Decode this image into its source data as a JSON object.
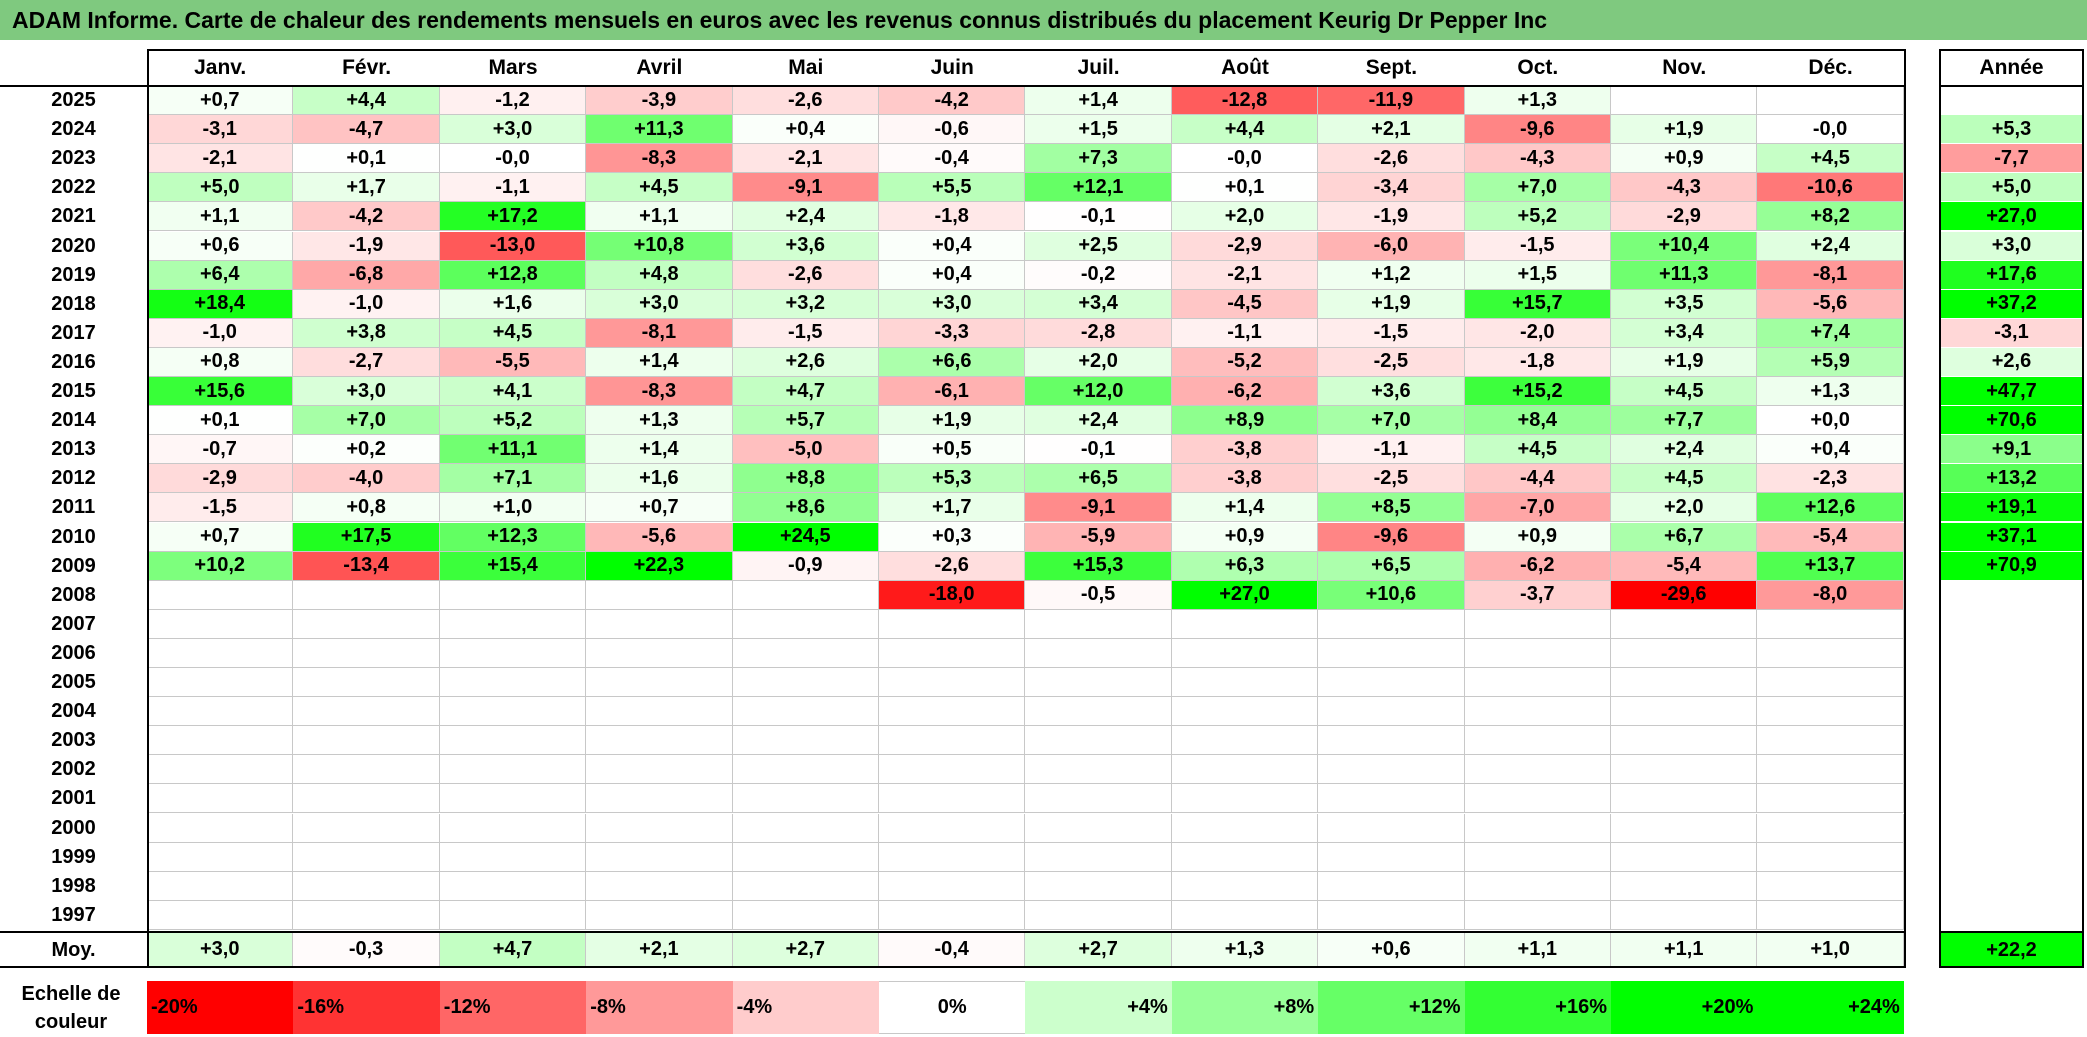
{
  "title": "ADAM Informe. Carte de chaleur des rendements mensuels en euros avec les revenus connus distribués du placement Keurig Dr Pepper Inc",
  "chart_data": {
    "type": "heatmap",
    "months": [
      "Janv.",
      "Févr.",
      "Mars",
      "Avril",
      "Mai",
      "Juin",
      "Juil.",
      "Août",
      "Sept.",
      "Oct.",
      "Nov.",
      "Déc."
    ],
    "year_header": "Année",
    "rows": [
      {
        "year": "2025",
        "values": [
          "+0,7",
          "+4,4",
          "-1,2",
          "-3,9",
          "-2,6",
          "-4,2",
          "+1,4",
          "-12,8",
          "-11,9",
          "+1,3",
          "",
          ""
        ],
        "annual": ""
      },
      {
        "year": "2024",
        "values": [
          "-3,1",
          "-4,7",
          "+3,0",
          "+11,3",
          "+0,4",
          "-0,6",
          "+1,5",
          "+4,4",
          "+2,1",
          "-9,6",
          "+1,9",
          "-0,0"
        ],
        "annual": "+5,3"
      },
      {
        "year": "2023",
        "values": [
          "-2,1",
          "+0,1",
          "-0,0",
          "-8,3",
          "-2,1",
          "-0,4",
          "+7,3",
          "-0,0",
          "-2,6",
          "-4,3",
          "+0,9",
          "+4,5"
        ],
        "annual": "-7,7"
      },
      {
        "year": "2022",
        "values": [
          "+5,0",
          "+1,7",
          "-1,1",
          "+4,5",
          "-9,1",
          "+5,5",
          "+12,1",
          "+0,1",
          "-3,4",
          "+7,0",
          "-4,3",
          "-10,6"
        ],
        "annual": "+5,0"
      },
      {
        "year": "2021",
        "values": [
          "+1,1",
          "-4,2",
          "+17,2",
          "+1,1",
          "+2,4",
          "-1,8",
          "-0,1",
          "+2,0",
          "-1,9",
          "+5,2",
          "-2,9",
          "+8,2"
        ],
        "annual": "+27,0"
      },
      {
        "year": "2020",
        "values": [
          "+0,6",
          "-1,9",
          "-13,0",
          "+10,8",
          "+3,6",
          "+0,4",
          "+2,5",
          "-2,9",
          "-6,0",
          "-1,5",
          "+10,4",
          "+2,4"
        ],
        "annual": "+3,0"
      },
      {
        "year": "2019",
        "values": [
          "+6,4",
          "-6,8",
          "+12,8",
          "+4,8",
          "-2,6",
          "+0,4",
          "-0,2",
          "-2,1",
          "+1,2",
          "+1,5",
          "+11,3",
          "-8,1"
        ],
        "annual": "+17,6"
      },
      {
        "year": "2018",
        "values": [
          "+18,4",
          "-1,0",
          "+1,6",
          "+3,0",
          "+3,2",
          "+3,0",
          "+3,4",
          "-4,5",
          "+1,9",
          "+15,7",
          "+3,5",
          "-5,6"
        ],
        "annual": "+37,2"
      },
      {
        "year": "2017",
        "values": [
          "-1,0",
          "+3,8",
          "+4,5",
          "-8,1",
          "-1,5",
          "-3,3",
          "-2,8",
          "-1,1",
          "-1,5",
          "-2,0",
          "+3,4",
          "+7,4"
        ],
        "annual": "-3,1"
      },
      {
        "year": "2016",
        "values": [
          "+0,8",
          "-2,7",
          "-5,5",
          "+1,4",
          "+2,6",
          "+6,6",
          "+2,0",
          "-5,2",
          "-2,5",
          "-1,8",
          "+1,9",
          "+5,9"
        ],
        "annual": "+2,6"
      },
      {
        "year": "2015",
        "values": [
          "+15,6",
          "+3,0",
          "+4,1",
          "-8,3",
          "+4,7",
          "-6,1",
          "+12,0",
          "-6,2",
          "+3,6",
          "+15,2",
          "+4,5",
          "+1,3"
        ],
        "annual": "+47,7"
      },
      {
        "year": "2014",
        "values": [
          "+0,1",
          "+7,0",
          "+5,2",
          "+1,3",
          "+5,7",
          "+1,9",
          "+2,4",
          "+8,9",
          "+7,0",
          "+8,4",
          "+7,7",
          "+0,0"
        ],
        "annual": "+70,6"
      },
      {
        "year": "2013",
        "values": [
          "-0,7",
          "+0,2",
          "+11,1",
          "+1,4",
          "-5,0",
          "+0,5",
          "-0,1",
          "-3,8",
          "-1,1",
          "+4,5",
          "+2,4",
          "+0,4"
        ],
        "annual": "+9,1"
      },
      {
        "year": "2012",
        "values": [
          "-2,9",
          "-4,0",
          "+7,1",
          "+1,6",
          "+8,8",
          "+5,3",
          "+6,5",
          "-3,8",
          "-2,5",
          "-4,4",
          "+4,5",
          "-2,3"
        ],
        "annual": "+13,2"
      },
      {
        "year": "2011",
        "values": [
          "-1,5",
          "+0,8",
          "+1,0",
          "+0,7",
          "+8,6",
          "+1,7",
          "-9,1",
          "+1,4",
          "+8,5",
          "-7,0",
          "+2,0",
          "+12,6"
        ],
        "annual": "+19,1"
      },
      {
        "year": "2010",
        "values": [
          "+0,7",
          "+17,5",
          "+12,3",
          "-5,6",
          "+24,5",
          "+0,3",
          "-5,9",
          "+0,9",
          "-9,6",
          "+0,9",
          "+6,7",
          "-5,4"
        ],
        "annual": "+37,1"
      },
      {
        "year": "2009",
        "values": [
          "+10,2",
          "-13,4",
          "+15,4",
          "+22,3",
          "-0,9",
          "-2,6",
          "+15,3",
          "+6,3",
          "+6,5",
          "-6,2",
          "-5,4",
          "+13,7"
        ],
        "annual": "+70,9"
      },
      {
        "year": "2008",
        "values": [
          "",
          "",
          "",
          "",
          "",
          "-18,0",
          "-0,5",
          "+27,0",
          "+10,6",
          "-3,7",
          "-29,6",
          "-8,0"
        ],
        "annual": ""
      },
      {
        "year": "2007",
        "values": [
          "",
          "",
          "",
          "",
          "",
          "",
          "",
          "",
          "",
          "",
          "",
          ""
        ],
        "annual": ""
      },
      {
        "year": "2006",
        "values": [
          "",
          "",
          "",
          "",
          "",
          "",
          "",
          "",
          "",
          "",
          "",
          ""
        ],
        "annual": ""
      },
      {
        "year": "2005",
        "values": [
          "",
          "",
          "",
          "",
          "",
          "",
          "",
          "",
          "",
          "",
          "",
          ""
        ],
        "annual": ""
      },
      {
        "year": "2004",
        "values": [
          "",
          "",
          "",
          "",
          "",
          "",
          "",
          "",
          "",
          "",
          "",
          ""
        ],
        "annual": ""
      },
      {
        "year": "2003",
        "values": [
          "",
          "",
          "",
          "",
          "",
          "",
          "",
          "",
          "",
          "",
          "",
          ""
        ],
        "annual": ""
      },
      {
        "year": "2002",
        "values": [
          "",
          "",
          "",
          "",
          "",
          "",
          "",
          "",
          "",
          "",
          "",
          ""
        ],
        "annual": ""
      },
      {
        "year": "2001",
        "values": [
          "",
          "",
          "",
          "",
          "",
          "",
          "",
          "",
          "",
          "",
          "",
          ""
        ],
        "annual": ""
      },
      {
        "year": "2000",
        "values": [
          "",
          "",
          "",
          "",
          "",
          "",
          "",
          "",
          "",
          "",
          "",
          ""
        ],
        "annual": ""
      },
      {
        "year": "1999",
        "values": [
          "",
          "",
          "",
          "",
          "",
          "",
          "",
          "",
          "",
          "",
          "",
          ""
        ],
        "annual": ""
      },
      {
        "year": "1998",
        "values": [
          "",
          "",
          "",
          "",
          "",
          "",
          "",
          "",
          "",
          "",
          "",
          ""
        ],
        "annual": ""
      },
      {
        "year": "1997",
        "values": [
          "",
          "",
          "",
          "",
          "",
          "",
          "",
          "",
          "",
          "",
          "",
          ""
        ],
        "annual": ""
      }
    ],
    "average": {
      "label": "Moy.",
      "values": [
        "+3,0",
        "-0,3",
        "+4,7",
        "+2,1",
        "+2,7",
        "-0,4",
        "+2,7",
        "+1,3",
        "+0,6",
        "+1,1",
        "+1,1",
        "+1,0"
      ],
      "annual": "+22,2"
    },
    "color_scale": {
      "label": "Echelle de couleur",
      "steps": [
        {
          "label": "-20%",
          "value": -20,
          "color": "#ff0000"
        },
        {
          "label": "-16%",
          "value": -16,
          "color": "#ff3333"
        },
        {
          "label": "-12%",
          "value": -12,
          "color": "#ff6666"
        },
        {
          "label": "-8%",
          "value": -8,
          "color": "#ff9999"
        },
        {
          "label": "-4%",
          "value": -4,
          "color": "#ffcccc"
        },
        {
          "label": "0%",
          "value": 0,
          "color": "#ffffff"
        },
        {
          "label": "+4%",
          "value": 4,
          "color": "#ccffcc"
        },
        {
          "label": "+8%",
          "value": 8,
          "color": "#99ff99"
        },
        {
          "label": "+12%",
          "value": 12,
          "color": "#66ff66"
        },
        {
          "label": "+16%",
          "value": 16,
          "color": "#33ff33"
        },
        {
          "label": "+20%",
          "value": 20,
          "color": "#00ff00"
        },
        {
          "label": "+24%",
          "value": 24,
          "color": "#00ff00"
        }
      ]
    }
  }
}
